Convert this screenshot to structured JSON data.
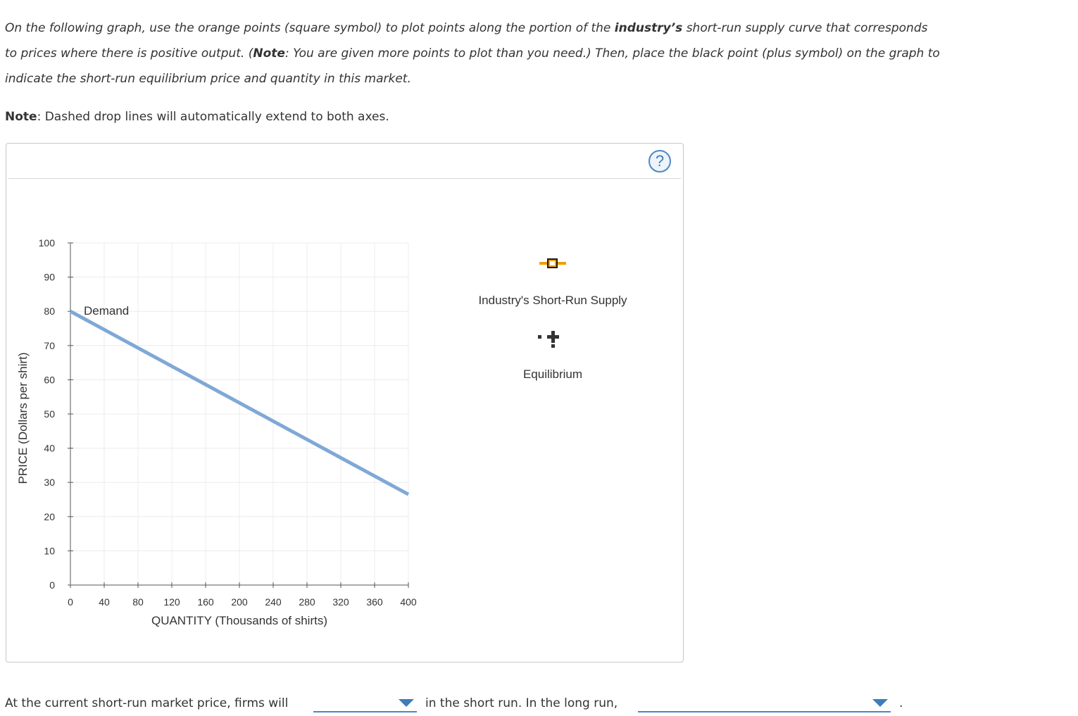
{
  "instructions": {
    "p1_a": "On the following graph, use the orange points (square symbol) to plot points along the portion of the ",
    "p1_bold": "industry’s",
    "p1_b": " short-run supply curve that corresponds to prices where there is positive output. (",
    "p1_note": "Note",
    "p1_c": ": You are given more points to plot than you need.) Then, place the black point (plus symbol) on the graph to indicate the short-run equilibrium price and quantity in this market.",
    "note_label": "Note",
    "note_text": ": Dashed drop lines will automatically extend to both axes."
  },
  "help": {
    "label": "?"
  },
  "palette": {
    "supply_label": "Industry's Short-Run Supply",
    "equilibrium_label": "Equilibrium",
    "supply_color": "#f0a000",
    "supply_icon": "orange-square-point-icon",
    "equilibrium_icon": "black-plus-point-icon"
  },
  "chart_data": {
    "type": "line",
    "xlabel": "QUANTITY (Thousands of shirts)",
    "ylabel": "PRICE (Dollars per shirt)",
    "xlim": [
      0,
      400
    ],
    "ylim": [
      0,
      100
    ],
    "x_ticks": [
      0,
      40,
      80,
      120,
      160,
      200,
      240,
      280,
      320,
      360,
      400
    ],
    "y_ticks": [
      0,
      10,
      20,
      30,
      40,
      50,
      60,
      70,
      80,
      90,
      100
    ],
    "grid": true,
    "series": [
      {
        "name": "Demand",
        "color": "#7fa8d6",
        "x": [
          0,
          400
        ],
        "y": [
          80,
          26.5
        ]
      }
    ]
  },
  "question": {
    "text1": "At the current short-run market price, firms will",
    "dropdown1_value": "",
    "text2": "in the short run. In the long run,",
    "dropdown2_value": "",
    "text3": "."
  }
}
